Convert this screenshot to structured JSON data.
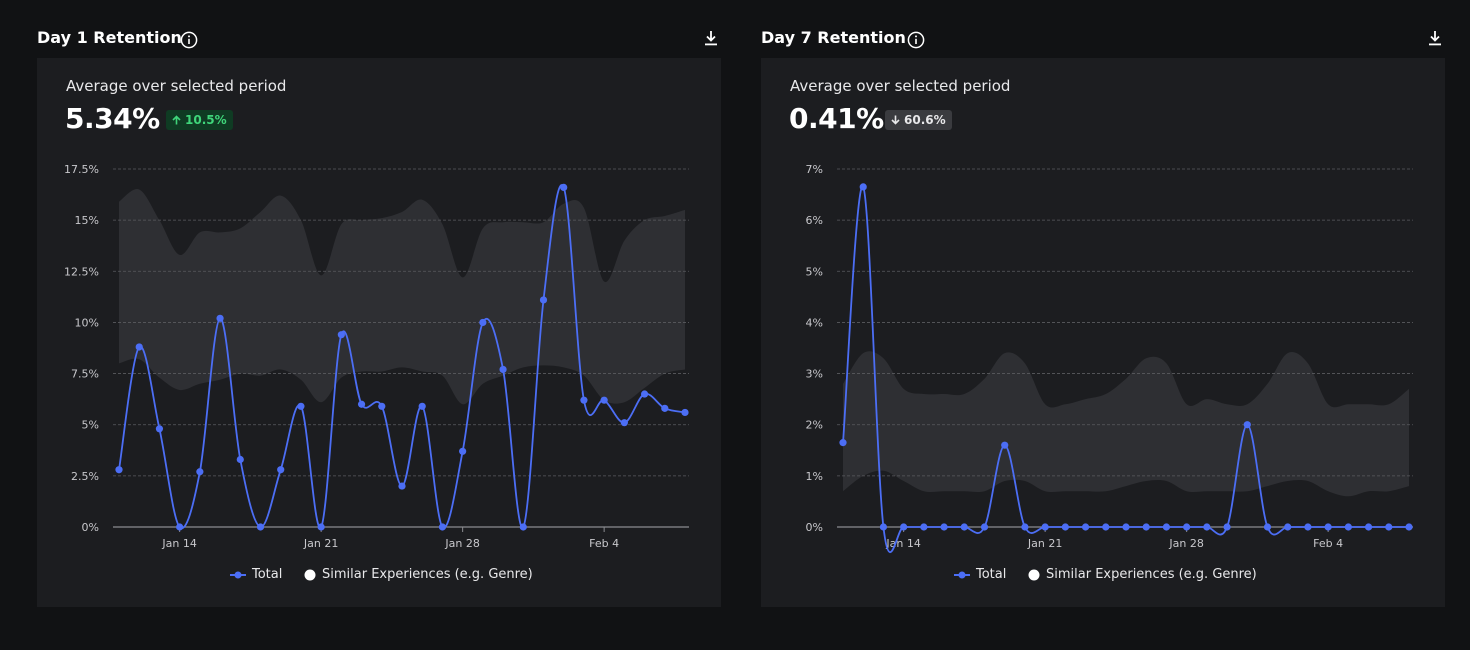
{
  "panels": [
    {
      "title": "Day 1 Retention",
      "avg_label": "Average over selected period",
      "avg_value": "5.34%",
      "delta": {
        "text": "10.5%",
        "direction": "up"
      },
      "legend": {
        "total": "Total",
        "similar": "Similar Experiences (e.g. Genre)"
      }
    },
    {
      "title": "Day 7 Retention",
      "avg_label": "Average over selected period",
      "avg_value": "0.41%",
      "delta": {
        "text": "60.6%",
        "direction": "down"
      },
      "legend": {
        "total": "Total",
        "similar": "Similar Experiences (e.g. Genre)"
      }
    }
  ],
  "colors": {
    "total": "#4c6ef5",
    "band": "#2e2f33",
    "grid": "#5a5b5f",
    "axis": "#8a8b8f",
    "up": "#3fd57a"
  },
  "icons": {
    "info": "info-icon",
    "download": "download-icon"
  },
  "chart_data": [
    {
      "type": "line",
      "title": "Day 1 Retention",
      "x_start": "Jan 11",
      "x": [
        "Jan 11",
        "Jan 12",
        "Jan 13",
        "Jan 14",
        "Jan 15",
        "Jan 16",
        "Jan 17",
        "Jan 18",
        "Jan 19",
        "Jan 20",
        "Jan 21",
        "Jan 22",
        "Jan 23",
        "Jan 24",
        "Jan 25",
        "Jan 26",
        "Jan 27",
        "Jan 28",
        "Jan 29",
        "Jan 30",
        "Jan 31",
        "Feb 1",
        "Feb 2",
        "Feb 3",
        "Feb 4",
        "Feb 5",
        "Feb 6",
        "Feb 7",
        "Feb 8"
      ],
      "x_ticks": [
        "Jan 14",
        "Jan 21",
        "Jan 28",
        "Feb 4"
      ],
      "y_ticks": [
        "0%",
        "2.5%",
        "5%",
        "7.5%",
        "10%",
        "12.5%",
        "15%",
        "17.5%"
      ],
      "ylim": [
        0,
        17.5
      ],
      "unit": "%",
      "series": [
        {
          "name": "Total",
          "values": [
            2.8,
            8.8,
            4.8,
            0,
            2.7,
            10.2,
            3.3,
            0,
            2.8,
            5.9,
            0,
            9.4,
            6.0,
            5.9,
            2.0,
            5.9,
            0,
            3.7,
            10.0,
            7.7,
            0,
            11.1,
            16.6,
            6.2,
            6.2,
            5.1,
            6.5,
            5.8,
            5.6
          ]
        },
        {
          "name": "Similar Experiences (e.g. Genre)",
          "kind": "band",
          "upper": [
            15.9,
            16.5,
            15.0,
            13.3,
            14.4,
            14.4,
            14.6,
            15.4,
            16.2,
            15.0,
            12.3,
            14.8,
            15.0,
            15.1,
            15.4,
            16.0,
            14.8,
            12.2,
            14.6,
            14.9,
            14.9,
            14.9,
            15.8,
            15.6,
            12.0,
            14.0,
            15.0,
            15.2,
            15.5
          ],
          "lower": [
            8.0,
            8.2,
            7.3,
            6.7,
            7.0,
            7.2,
            7.5,
            7.4,
            7.7,
            7.2,
            6.1,
            7.3,
            7.6,
            7.6,
            7.8,
            7.6,
            7.4,
            6.0,
            7.0,
            7.4,
            7.8,
            7.9,
            7.8,
            7.4,
            6.2,
            6.1,
            6.8,
            7.5,
            7.7
          ]
        }
      ],
      "grid": true,
      "legend_position": "bottom"
    },
    {
      "type": "line",
      "title": "Day 7 Retention",
      "x_start": "Jan 11",
      "x": [
        "Jan 11",
        "Jan 12",
        "Jan 13",
        "Jan 14",
        "Jan 15",
        "Jan 16",
        "Jan 17",
        "Jan 18",
        "Jan 19",
        "Jan 20",
        "Jan 21",
        "Jan 22",
        "Jan 23",
        "Jan 24",
        "Jan 25",
        "Jan 26",
        "Jan 27",
        "Jan 28",
        "Jan 29",
        "Jan 30",
        "Jan 31",
        "Feb 1",
        "Feb 2",
        "Feb 3",
        "Feb 4",
        "Feb 5",
        "Feb 6",
        "Feb 7",
        "Feb 8"
      ],
      "x_ticks": [
        "Jan 14",
        "Jan 21",
        "Jan 28",
        "Feb 4"
      ],
      "y_ticks": [
        "0%",
        "1%",
        "2%",
        "3%",
        "4%",
        "5%",
        "6%",
        "7%"
      ],
      "ylim": [
        0,
        7
      ],
      "unit": "%",
      "series": [
        {
          "name": "Total",
          "values": [
            1.65,
            6.65,
            0,
            0,
            0,
            0,
            0,
            0,
            1.6,
            0,
            0,
            0,
            0,
            0,
            0,
            0,
            0,
            0,
            0,
            0,
            2.0,
            0,
            0,
            0,
            0,
            0,
            0,
            0,
            0
          ]
        },
        {
          "name": "Similar Experiences (e.g. Genre)",
          "kind": "band",
          "upper": [
            2.8,
            3.4,
            3.3,
            2.7,
            2.6,
            2.6,
            2.6,
            2.9,
            3.4,
            3.2,
            2.4,
            2.4,
            2.5,
            2.6,
            2.9,
            3.3,
            3.2,
            2.4,
            2.5,
            2.4,
            2.4,
            2.8,
            3.4,
            3.2,
            2.4,
            2.4,
            2.4,
            2.4,
            2.7
          ],
          "lower": [
            0.7,
            1.0,
            1.1,
            0.9,
            0.7,
            0.7,
            0.7,
            0.7,
            0.9,
            0.9,
            0.7,
            0.7,
            0.7,
            0.7,
            0.8,
            0.9,
            0.9,
            0.7,
            0.7,
            0.7,
            0.7,
            0.8,
            0.9,
            0.9,
            0.7,
            0.6,
            0.7,
            0.7,
            0.8
          ]
        }
      ],
      "grid": true,
      "legend_position": "bottom"
    }
  ]
}
